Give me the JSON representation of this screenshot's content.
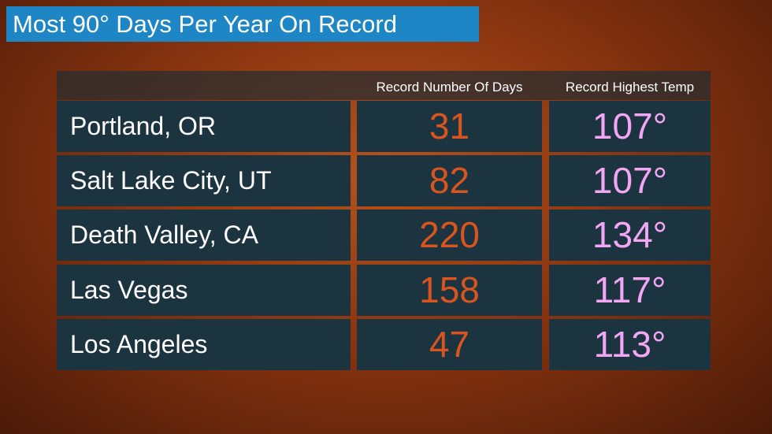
{
  "header": {
    "title": "Most 90° Days Per Year On Record"
  },
  "table": {
    "columns": [
      "Record Number Of Days",
      "Record Highest Temp"
    ],
    "rows": [
      [
        "Portland, OR",
        "31",
        "107°"
      ],
      [
        "Salt Lake City, UT",
        "82",
        "107°"
      ],
      [
        "Death Valley, CA",
        "220",
        "134°"
      ],
      [
        "Las Vegas",
        "158",
        "117°"
      ],
      [
        "Los Angeles",
        "47",
        "113°"
      ]
    ]
  }
}
